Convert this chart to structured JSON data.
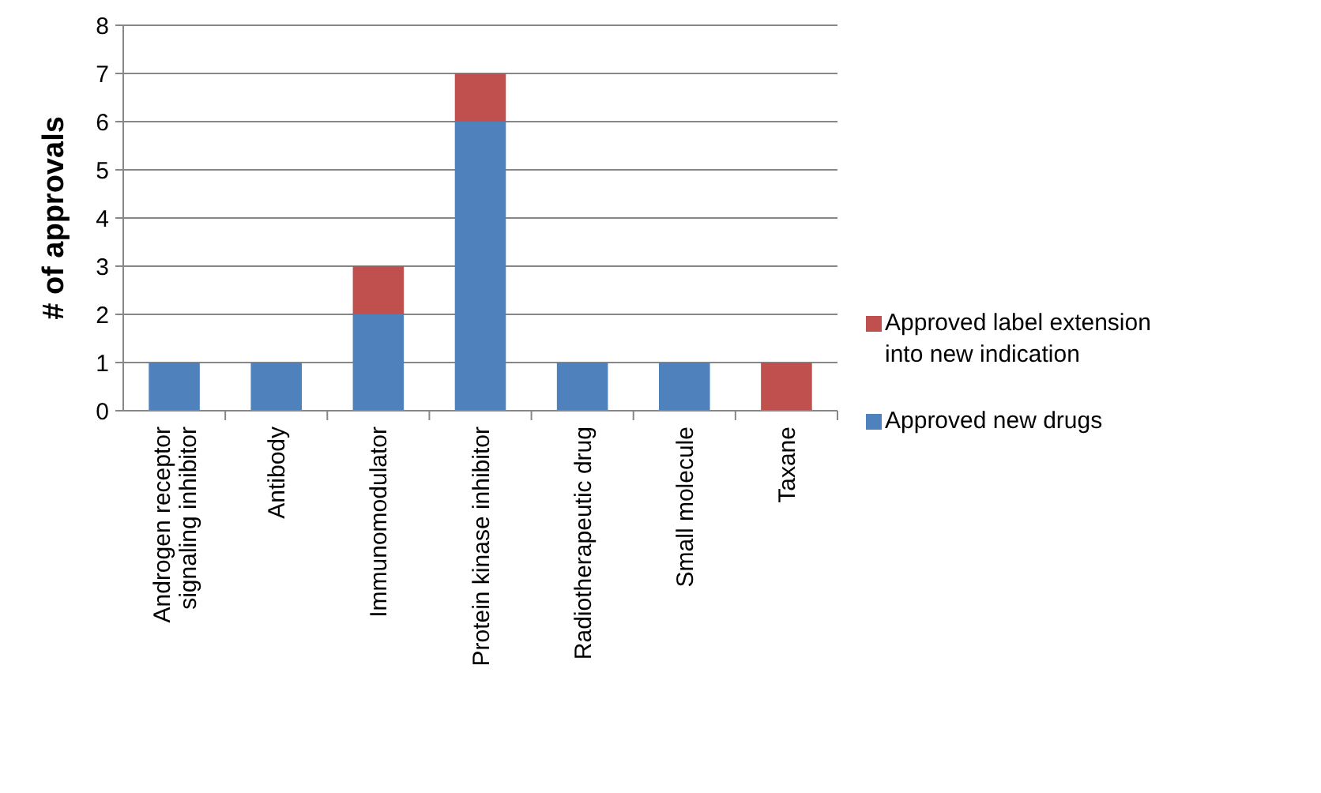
{
  "chart_data": {
    "type": "bar",
    "ylabel": "# of approvals",
    "categories": [
      "Androgen receptor signaling inhibitor",
      "Antibody",
      "Immunomodulator",
      "Protein kinase inhibitor",
      "Radiotherapeutic drug",
      "Small molecule",
      "Taxane"
    ],
    "series": [
      {
        "name": "Approved new drugs",
        "color": "#4f81bd",
        "values": [
          1,
          1,
          2,
          6,
          1,
          1,
          0
        ]
      },
      {
        "name": "Approved label extension into new indication",
        "color": "#c0504d",
        "values": [
          0,
          0,
          1,
          1,
          0,
          0,
          1
        ]
      }
    ],
    "stacked": true,
    "ylim": [
      0,
      8
    ],
    "yticks": [
      0,
      1,
      2,
      3,
      4,
      5,
      6,
      7,
      8
    ],
    "grid": "y",
    "legend": "right"
  }
}
